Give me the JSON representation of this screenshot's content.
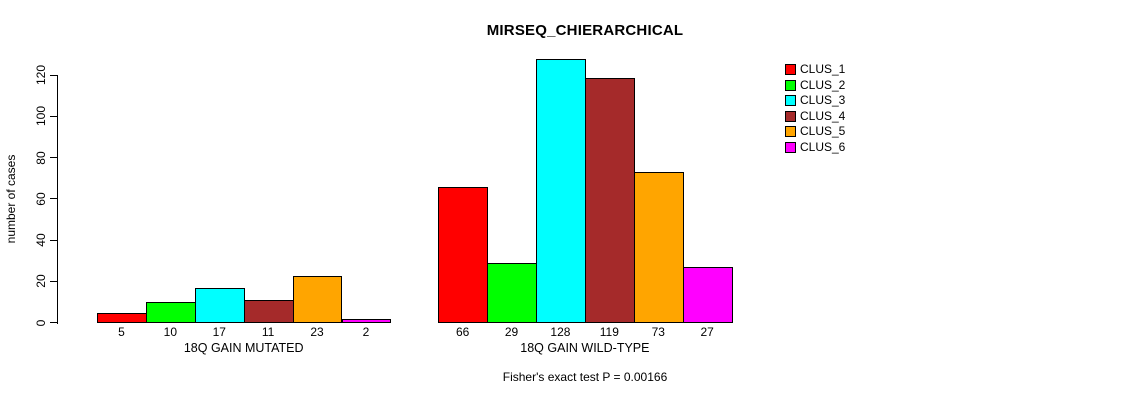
{
  "chart_data": {
    "type": "bar",
    "title": "MIRSEQ_CHIERARCHICAL",
    "ylabel": "number of cases",
    "xlabel": "",
    "ylim": [
      0,
      120
    ],
    "yticks": [
      0,
      20,
      40,
      60,
      80,
      100,
      120
    ],
    "grid": false,
    "legend_position": "right",
    "bar_value_labels_shown": true,
    "groups": [
      {
        "label": "18Q GAIN MUTATED",
        "values": [
          5,
          10,
          17,
          11,
          23,
          2
        ]
      },
      {
        "label": "18Q GAIN WILD-TYPE",
        "values": [
          66,
          29,
          128,
          119,
          73,
          27
        ]
      }
    ],
    "series_names": [
      "CLUS_1",
      "CLUS_2",
      "CLUS_3",
      "CLUS_4",
      "CLUS_5",
      "CLUS_6"
    ],
    "colors": [
      "#FF0000",
      "#00FF00",
      "#00FFFF",
      "#A52A2A",
      "#FFA500",
      "#FF00FF"
    ],
    "annotation": "Fisher's exact test P = 0.00166"
  }
}
